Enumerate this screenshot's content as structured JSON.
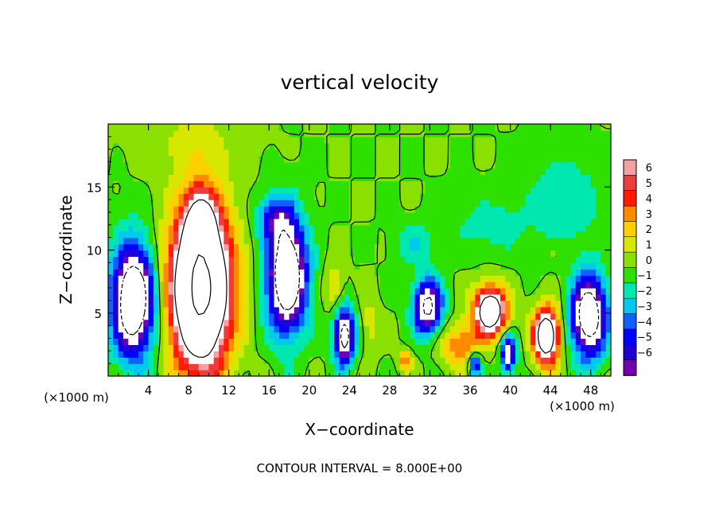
{
  "chart_data": {
    "type": "heatmap",
    "title": "vertical velocity",
    "xlabel": "X−coordinate",
    "ylabel": "Z−coordinate",
    "x_unit_left": "(×1000 m)",
    "x_unit_right": "(×1000 m)",
    "footer": "CONTOUR INTERVAL = 8.000E+00",
    "xlim": [
      0,
      50
    ],
    "ylim": [
      0,
      20
    ],
    "x_ticks": [
      4,
      8,
      12,
      16,
      20,
      24,
      28,
      32,
      36,
      40,
      44,
      48
    ],
    "x_tick_labels": [
      "4",
      "8",
      "12",
      "16",
      "20",
      "24",
      "28",
      "32",
      "36",
      "40",
      "44",
      "48"
    ],
    "y_ticks": [
      5,
      10,
      15
    ],
    "y_tick_labels": [
      "5",
      "10",
      "15"
    ],
    "colorbar": {
      "levels": [
        6,
        5,
        4,
        3,
        2,
        1,
        0,
        -1,
        -2,
        -3,
        -4,
        -5,
        -6
      ],
      "labels": [
        "6",
        "5",
        "4",
        "3",
        "2",
        "1",
        "0",
        "−1",
        "−2",
        "−3",
        "−4",
        "−5",
        "−6"
      ],
      "colors": [
        "#f4a0a0",
        "#ee3c3c",
        "#ff1a00",
        "#ff8a00",
        "#ffd000",
        "#d7e800",
        "#8ae000",
        "#2ee000",
        "#00e8b0",
        "#00c8f0",
        "#1060ff",
        "#0000ff",
        "#2000d0",
        "#7000b0"
      ]
    },
    "background_color": "#5ee014",
    "blobs": [
      {
        "x": 9.2,
        "y": 7.0,
        "rx": 3.6,
        "ry": 7.8,
        "peak": 18
      },
      {
        "x": 9.2,
        "y": 12.5,
        "rx": 1.8,
        "ry": 2.8,
        "peak": 5
      },
      {
        "x": 2.5,
        "y": 6.0,
        "rx": 2.6,
        "ry": 5.5,
        "peak": -12
      },
      {
        "x": 17.8,
        "y": 8.0,
        "rx": 2.4,
        "ry": 5.5,
        "peak": -12
      },
      {
        "x": 16.5,
        "y": 12.5,
        "rx": 2.2,
        "ry": 2.2,
        "peak": -4
      },
      {
        "x": 23.5,
        "y": 3.2,
        "rx": 1.3,
        "ry": 2.8,
        "peak": -10
      },
      {
        "x": 31.8,
        "y": 5.5,
        "rx": 1.8,
        "ry": 2.8,
        "peak": -9
      },
      {
        "x": 30.5,
        "y": 10.5,
        "rx": 2.5,
        "ry": 2.0,
        "peak": -2
      },
      {
        "x": 38.0,
        "y": 5.2,
        "rx": 2.0,
        "ry": 2.4,
        "peak": 12
      },
      {
        "x": 43.6,
        "y": 3.2,
        "rx": 1.6,
        "ry": 2.8,
        "peak": 12
      },
      {
        "x": 35.0,
        "y": 2.5,
        "rx": 2.6,
        "ry": 2.2,
        "peak": 4
      },
      {
        "x": 39.8,
        "y": 1.8,
        "rx": 1.0,
        "ry": 1.8,
        "peak": -8
      },
      {
        "x": 36.5,
        "y": 1.0,
        "rx": 0.8,
        "ry": 1.2,
        "peak": -6
      },
      {
        "x": 47.8,
        "y": 4.8,
        "rx": 2.2,
        "ry": 4.0,
        "peak": -11
      },
      {
        "x": 22.5,
        "y": 7.0,
        "rx": 1.2,
        "ry": 2.6,
        "peak": 2
      },
      {
        "x": 26.0,
        "y": 4.0,
        "rx": 1.2,
        "ry": 3.0,
        "peak": 1.5
      },
      {
        "x": 29.5,
        "y": 1.3,
        "rx": 0.8,
        "ry": 1.0,
        "peak": 4
      },
      {
        "x": 45.5,
        "y": 14.0,
        "rx": 4.5,
        "ry": 4.5,
        "peak": -2
      },
      {
        "x": 38.0,
        "y": 12.0,
        "rx": 5.0,
        "ry": 3.0,
        "peak": -1.5
      },
      {
        "x": 8.5,
        "y": 18.5,
        "rx": 6.0,
        "ry": 3.0,
        "peak": 1.2
      },
      {
        "x": 44.5,
        "y": 10.0,
        "rx": 1.0,
        "ry": 1.2,
        "peak": 0.8
      }
    ]
  }
}
